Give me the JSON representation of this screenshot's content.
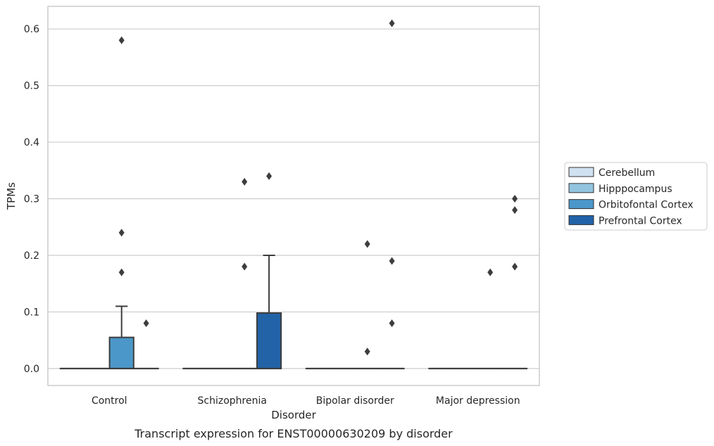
{
  "chart_data": {
    "type": "box",
    "xlabel": "Disorder",
    "ylabel": "TPMs",
    "caption": "Transcript expression for ENST00000630209 by disorder",
    "categories": [
      "Control",
      "Schizophrenia",
      "Bipolar disorder",
      "Major depression"
    ],
    "hue_order": [
      "Cerebellum",
      "Hipppocampus",
      "Orbitofontal Cortex",
      "Prefrontal Cortex"
    ],
    "colors": [
      "#d0e1f1",
      "#93c4df",
      "#4b97c9",
      "#2262a6"
    ],
    "ylim": [
      -0.03,
      0.64
    ],
    "yticks": [
      0.0,
      0.1,
      0.2,
      0.3,
      0.4,
      0.5,
      0.6
    ],
    "ytick_labels": [
      "0.0",
      "0.1",
      "0.2",
      "0.3",
      "0.4",
      "0.5",
      "0.6"
    ],
    "grid": true,
    "legend_position": "right-outside",
    "boxes": [
      {
        "category": "Control",
        "hue": "Cerebellum",
        "q1": 0,
        "median": 0,
        "q3": 0,
        "whisker_low": 0,
        "whisker_high": 0,
        "outliers": []
      },
      {
        "category": "Control",
        "hue": "Hipppocampus",
        "q1": 0,
        "median": 0,
        "q3": 0,
        "whisker_low": 0,
        "whisker_high": 0,
        "outliers": []
      },
      {
        "category": "Control",
        "hue": "Orbitofontal Cortex",
        "q1": 0,
        "median": 0,
        "q3": 0.055,
        "whisker_low": 0,
        "whisker_high": 0.11,
        "outliers": [
          0.58,
          0.24,
          0.17
        ]
      },
      {
        "category": "Control",
        "hue": "Prefrontal Cortex",
        "q1": 0,
        "median": 0,
        "q3": 0,
        "whisker_low": 0,
        "whisker_high": 0,
        "outliers": [
          0.08
        ]
      },
      {
        "category": "Schizophrenia",
        "hue": "Cerebellum",
        "q1": 0,
        "median": 0,
        "q3": 0,
        "whisker_low": 0,
        "whisker_high": 0,
        "outliers": []
      },
      {
        "category": "Schizophrenia",
        "hue": "Hipppocampus",
        "q1": 0,
        "median": 0,
        "q3": 0,
        "whisker_low": 0,
        "whisker_high": 0,
        "outliers": []
      },
      {
        "category": "Schizophrenia",
        "hue": "Orbitofontal Cortex",
        "q1": 0,
        "median": 0,
        "q3": 0,
        "whisker_low": 0,
        "whisker_high": 0,
        "outliers": [
          0.33,
          0.18
        ]
      },
      {
        "category": "Schizophrenia",
        "hue": "Prefrontal Cortex",
        "q1": 0,
        "median": 0,
        "q3": 0.098,
        "whisker_low": 0,
        "whisker_high": 0.2,
        "outliers": [
          0.34
        ]
      },
      {
        "category": "Bipolar disorder",
        "hue": "Cerebellum",
        "q1": 0,
        "median": 0,
        "q3": 0,
        "whisker_low": 0,
        "whisker_high": 0,
        "outliers": []
      },
      {
        "category": "Bipolar disorder",
        "hue": "Hipppocampus",
        "q1": 0,
        "median": 0,
        "q3": 0,
        "whisker_low": 0,
        "whisker_high": 0,
        "outliers": []
      },
      {
        "category": "Bipolar disorder",
        "hue": "Orbitofontal Cortex",
        "q1": 0,
        "median": 0,
        "q3": 0,
        "whisker_low": 0,
        "whisker_high": 0,
        "outliers": [
          0.22,
          0.03
        ]
      },
      {
        "category": "Bipolar disorder",
        "hue": "Prefrontal Cortex",
        "q1": 0,
        "median": 0,
        "q3": 0,
        "whisker_low": 0,
        "whisker_high": 0,
        "outliers": [
          0.61,
          0.19,
          0.08
        ]
      },
      {
        "category": "Major depression",
        "hue": "Cerebellum",
        "q1": 0,
        "median": 0,
        "q3": 0,
        "whisker_low": 0,
        "whisker_high": 0,
        "outliers": []
      },
      {
        "category": "Major depression",
        "hue": "Hipppocampus",
        "q1": 0,
        "median": 0,
        "q3": 0,
        "whisker_low": 0,
        "whisker_high": 0,
        "outliers": []
      },
      {
        "category": "Major depression",
        "hue": "Orbitofontal Cortex",
        "q1": 0,
        "median": 0,
        "q3": 0,
        "whisker_low": 0,
        "whisker_high": 0,
        "outliers": [
          0.17
        ]
      },
      {
        "category": "Major depression",
        "hue": "Prefrontal Cortex",
        "q1": 0,
        "median": 0,
        "q3": 0,
        "whisker_low": 0,
        "whisker_high": 0,
        "outliers": [
          0.3,
          0.28,
          0.18
        ]
      }
    ]
  }
}
